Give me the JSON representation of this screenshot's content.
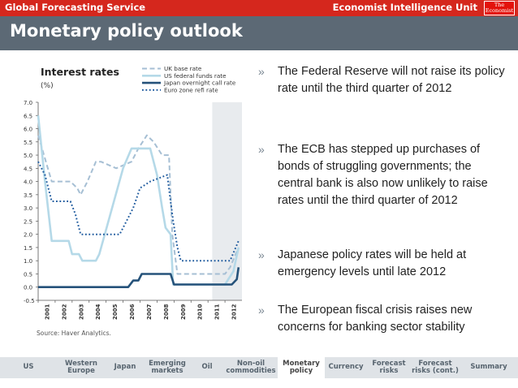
{
  "header": {
    "service": "Global Forecasting Service",
    "brand": "Economist Intelligence Unit",
    "logo_line1": "The",
    "logo_line2": "Economist"
  },
  "page_title": "Monetary policy outlook",
  "bullets": [
    "The Federal Reserve will not raise its policy rate until the third quarter of 2012",
    "The ECB has stepped up purchases of bonds of struggling governments; the central bank is also now unlikely to raise rates until the third quarter of 2012",
    "Japanese policy rates will be held at emergency levels until late 2012",
    "The European fiscal crisis raises new concerns for banking sector stability"
  ],
  "bullet_marker": "»",
  "nav": {
    "items": [
      "US",
      "Western\nEurope",
      "Japan",
      "Emerging\nmarkets",
      "Oil",
      "Non-oil\ncommodities",
      "Monetary\npolicy",
      "Currency",
      "Forecast\nrisks",
      "Forecast\nrisks (cont.)",
      "Summary"
    ],
    "active": "Monetary\npolicy"
  },
  "colors": {
    "topbar": "#d5271d",
    "titlebar": "#5c6975",
    "uk": "#a6bfd4",
    "us": "#b5d9e8",
    "japan": "#25527a",
    "euro": "#1e5a9e",
    "forecast_shade": "#e8ebee"
  },
  "chart_data": {
    "type": "line",
    "title": "Interest rates",
    "subtitle": "(%)",
    "source": "Source: Haver Analytics.",
    "ylim": [
      -0.5,
      7.0
    ],
    "yticks": [
      "7.0",
      "6.5",
      "6.0",
      "5.5",
      "5.0",
      "4.5",
      "4.0",
      "3.5",
      "3.0",
      "2.5",
      "2.0",
      "1.5",
      "1.0",
      "0.5",
      "0.0",
      "-0.5"
    ],
    "xlim": [
      2001,
      2013
    ],
    "xticks": [
      "2001",
      "2002",
      "2003",
      "2004",
      "2005",
      "2006",
      "2007",
      "2008",
      "2009",
      "2010",
      "2011",
      "2012"
    ],
    "forecast_start": 2011.25,
    "legend_position": "top-right",
    "series": [
      {
        "name": "UK base rate",
        "style": "dashed",
        "x": [
          2001,
          2001.8,
          2002.9,
          2003.3,
          2003.5,
          2003.9,
          2004.4,
          2004.7,
          2005.6,
          2006.5,
          2006.9,
          2007.4,
          2007.8,
          2008.3,
          2008.7,
          2008.9,
          2009.2,
          2011.4,
          2012.0,
          2012.3,
          2012.8
        ],
        "y": [
          5.75,
          4.0,
          4.0,
          3.75,
          3.5,
          4.0,
          4.75,
          4.75,
          4.5,
          4.75,
          5.25,
          5.75,
          5.5,
          5.0,
          5.0,
          2.0,
          0.5,
          0.5,
          0.5,
          0.75,
          1.5
        ]
      },
      {
        "name": "US federal funds rate",
        "style": "solid",
        "x": [
          2001,
          2001.4,
          2001.8,
          2002.8,
          2003.0,
          2003.4,
          2003.6,
          2004.4,
          2004.6,
          2006.0,
          2006.5,
          2007.6,
          2007.9,
          2008.0,
          2008.3,
          2008.5,
          2008.8,
          2008.95,
          2011.4,
          2012.0,
          2012.5,
          2012.8
        ],
        "y": [
          6.5,
          4.0,
          1.75,
          1.75,
          1.25,
          1.25,
          1.0,
          1.0,
          1.25,
          4.5,
          5.25,
          5.25,
          4.5,
          4.25,
          3.0,
          2.25,
          2.0,
          0.1,
          0.1,
          0.1,
          0.6,
          1.5
        ]
      },
      {
        "name": "Japan overnight call rate",
        "style": "solid-bold",
        "x": [
          2001,
          2006.3,
          2006.6,
          2006.9,
          2007.1,
          2008.8,
          2009.0,
          2011.4,
          2012.4,
          2012.7,
          2012.8
        ],
        "y": [
          0.0,
          0.0,
          0.25,
          0.25,
          0.5,
          0.5,
          0.1,
          0.1,
          0.1,
          0.3,
          0.75
        ]
      },
      {
        "name": "Euro zone refi rate",
        "style": "dotted",
        "x": [
          2001,
          2001.4,
          2001.8,
          2002.9,
          2003.2,
          2003.5,
          2005.8,
          2006.2,
          2006.6,
          2007.0,
          2007.6,
          2008.6,
          2008.8,
          2008.95,
          2009.2,
          2009.4,
          2011.4,
          2012.3,
          2012.8
        ],
        "y": [
          4.75,
          4.25,
          3.25,
          3.25,
          2.75,
          2.0,
          2.0,
          2.5,
          3.0,
          3.75,
          4.0,
          4.25,
          3.25,
          2.5,
          1.5,
          1.0,
          1.0,
          1.0,
          1.75
        ]
      }
    ]
  }
}
